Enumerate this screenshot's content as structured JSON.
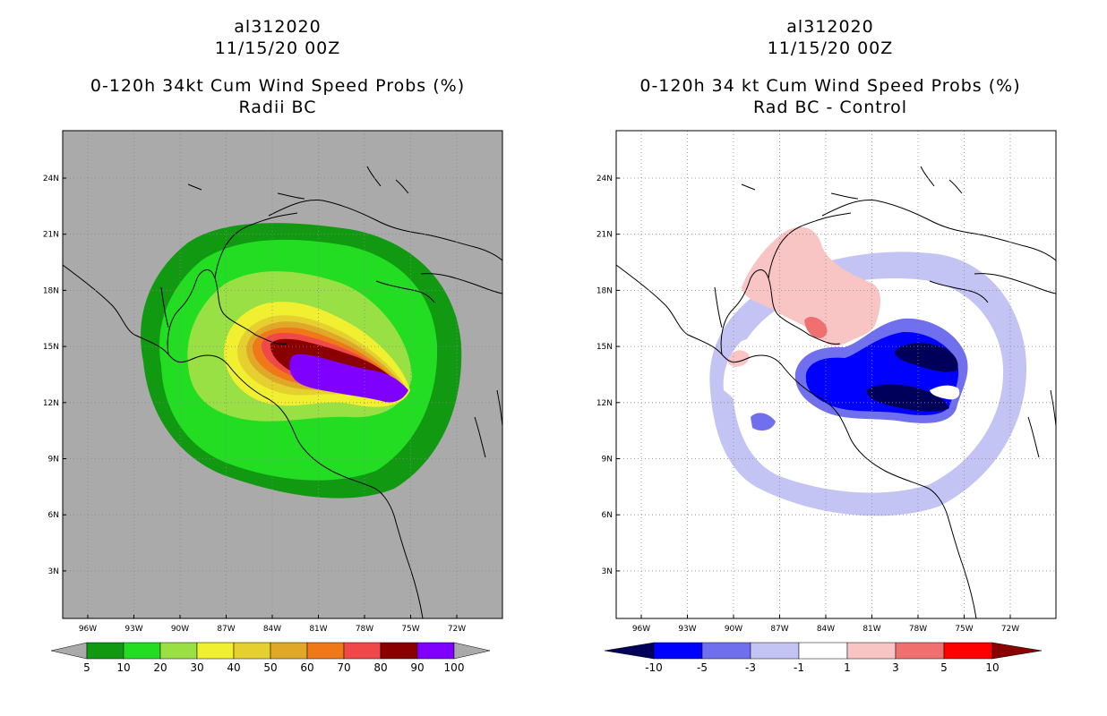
{
  "panels": [
    {
      "title_line1": "al312020",
      "title_line2": "11/15/20 00Z",
      "title_line3": "0-120h 34kt Cum Wind Speed Probs (%)",
      "title_line4": "Radii BC",
      "colorbar": {
        "labels": [
          "5",
          "10",
          "20",
          "30",
          "40",
          "50",
          "60",
          "70",
          "80",
          "90",
          "100"
        ],
        "colors": [
          "#119911",
          "#22dd22",
          "#99e044",
          "#f0f030",
          "#e6d030",
          "#e0a828",
          "#f07818",
          "#f04848",
          "#8a0000",
          "#8000ff"
        ]
      }
    },
    {
      "title_line1": "al312020",
      "title_line2": "11/15/20 00Z",
      "title_line3": "0-120h 34 kt Cum Wind Speed Probs (%)",
      "title_line4": "Rad BC - Control",
      "colorbar": {
        "labels": [
          "-10",
          "-5",
          "-3",
          "-1",
          "1",
          "3",
          "5",
          "10"
        ],
        "colors": [
          "#00005a",
          "#0000ff",
          "#7070ee",
          "#c4c4f4",
          "#ffffff",
          "#f8c4c4",
          "#f07070",
          "#ff0000",
          "#880000"
        ]
      }
    }
  ],
  "axes": {
    "lat_labels": [
      "24N",
      "21N",
      "18N",
      "15N",
      "12N",
      "9N",
      "6N",
      "3N"
    ],
    "lon_labels": [
      "96W",
      "93W",
      "90W",
      "87W",
      "84W",
      "81W",
      "78W",
      "75W",
      "72W"
    ]
  }
}
